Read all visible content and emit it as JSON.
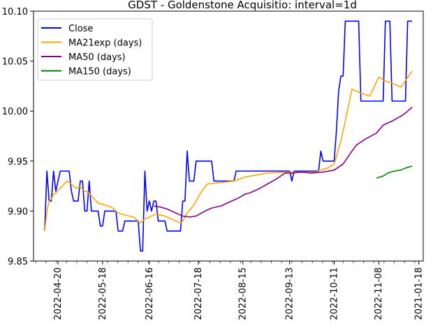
{
  "chart_data": {
    "type": "line",
    "title": "GDST - Goldenstone Acquisitio: interval=1d",
    "xlabel": "",
    "ylabel": "",
    "ylim": [
      9.85,
      10.1
    ],
    "y_ticks": [
      "9.85",
      "9.90",
      "9.95",
      "10.00",
      "10.05",
      "10.10"
    ],
    "x_tick_labels": [
      "2022-04-20",
      "2022-05-18",
      "2022-06-16",
      "2022-07-18",
      "2022-08-15",
      "2022-09-13",
      "2022-10-11",
      "2022-11-08",
      "2021-01-18"
    ],
    "legend_position": "upper-left",
    "grid": false,
    "series": [
      {
        "name": "Close",
        "color": "#0000ff",
        "values": [
          [
            0,
            9.88
          ],
          [
            1,
            9.94
          ],
          [
            2,
            9.91
          ],
          [
            3,
            9.91
          ],
          [
            4,
            9.94
          ],
          [
            5,
            9.92
          ],
          [
            6,
            9.93
          ],
          [
            7,
            9.94
          ],
          [
            11,
            9.94
          ],
          [
            12,
            9.92
          ],
          [
            13,
            9.91
          ],
          [
            15,
            9.91
          ],
          [
            16,
            9.93
          ],
          [
            17,
            9.93
          ],
          [
            18,
            9.9
          ],
          [
            19,
            9.9
          ],
          [
            20,
            9.93
          ],
          [
            21,
            9.9
          ],
          [
            24,
            9.9
          ],
          [
            25,
            9.885
          ],
          [
            26,
            9.885
          ],
          [
            27,
            9.9
          ],
          [
            32,
            9.9
          ],
          [
            33,
            9.88
          ],
          [
            35,
            9.88
          ],
          [
            36,
            9.89
          ],
          [
            42,
            9.89
          ],
          [
            43,
            9.86
          ],
          [
            44,
            9.86
          ],
          [
            45,
            9.94
          ],
          [
            46,
            9.9
          ],
          [
            47,
            9.91
          ],
          [
            48,
            9.9
          ],
          [
            49,
            9.91
          ],
          [
            50,
            9.91
          ],
          [
            51,
            9.89
          ],
          [
            54,
            9.89
          ],
          [
            55,
            9.88
          ],
          [
            61,
            9.88
          ],
          [
            62,
            9.91
          ],
          [
            63,
            9.91
          ],
          [
            64,
            9.96
          ],
          [
            65,
            9.93
          ],
          [
            67,
            9.93
          ],
          [
            68,
            9.95
          ],
          [
            75,
            9.95
          ],
          [
            76,
            9.93
          ],
          [
            85,
            9.93
          ],
          [
            86,
            9.94
          ],
          [
            110,
            9.94
          ],
          [
            111,
            9.93
          ],
          [
            112,
            9.94
          ],
          [
            123,
            9.94
          ],
          [
            124,
            9.96
          ],
          [
            125,
            9.95
          ],
          [
            130,
            9.95
          ],
          [
            131,
            9.98
          ],
          [
            132,
            10.02
          ],
          [
            133,
            10.035
          ],
          [
            134,
            10.035
          ],
          [
            135,
            10.09
          ],
          [
            141,
            10.09
          ],
          [
            142,
            10.01
          ],
          [
            152,
            10.01
          ],
          [
            153,
            10.09
          ],
          [
            155,
            10.09
          ],
          [
            156,
            10.01
          ],
          [
            162,
            10.01
          ],
          [
            163,
            10.09
          ],
          [
            165,
            10.09
          ]
        ]
      },
      {
        "name": "MA21exp (days)",
        "color": "#ffa500",
        "values": [
          [
            0,
            9.88
          ],
          [
            1,
            9.9
          ],
          [
            2,
            9.91
          ],
          [
            3,
            9.912
          ],
          [
            4,
            9.917
          ],
          [
            5,
            9.918
          ],
          [
            6,
            9.921
          ],
          [
            8,
            9.925
          ],
          [
            10,
            9.93
          ],
          [
            12,
            9.927
          ],
          [
            14,
            9.923
          ],
          [
            16,
            9.924
          ],
          [
            18,
            9.92
          ],
          [
            20,
            9.918
          ],
          [
            22,
            9.913
          ],
          [
            24,
            9.908
          ],
          [
            27,
            9.906
          ],
          [
            30,
            9.904
          ],
          [
            33,
            9.898
          ],
          [
            36,
            9.896
          ],
          [
            40,
            9.894
          ],
          [
            43,
            9.888
          ],
          [
            45,
            9.892
          ],
          [
            48,
            9.895
          ],
          [
            50,
            9.897
          ],
          [
            54,
            9.895
          ],
          [
            57,
            9.892
          ],
          [
            61,
            9.888
          ],
          [
            62,
            9.89
          ],
          [
            64,
            9.898
          ],
          [
            67,
            9.906
          ],
          [
            70,
            9.918
          ],
          [
            73,
            9.927
          ],
          [
            77,
            9.928
          ],
          [
            85,
            9.93
          ],
          [
            90,
            9.934
          ],
          [
            100,
            9.938
          ],
          [
            110,
            9.939
          ],
          [
            122,
            9.939
          ],
          [
            124,
            9.941
          ],
          [
            127,
            9.943
          ],
          [
            130,
            9.947
          ],
          [
            133,
            9.97
          ],
          [
            135,
            9.99
          ],
          [
            138,
            10.022
          ],
          [
            142,
            10.018
          ],
          [
            146,
            10.015
          ],
          [
            150,
            10.034
          ],
          [
            153,
            10.03
          ],
          [
            156,
            10.028
          ],
          [
            160,
            10.024
          ],
          [
            165,
            10.04
          ]
        ]
      },
      {
        "name": "MA50 (days)",
        "color": "#800080",
        "values": [
          [
            49,
            9.905
          ],
          [
            52,
            9.904
          ],
          [
            55,
            9.902
          ],
          [
            58,
            9.899
          ],
          [
            62,
            9.895
          ],
          [
            65,
            9.894
          ],
          [
            68,
            9.895
          ],
          [
            72,
            9.9
          ],
          [
            75,
            9.903
          ],
          [
            79,
            9.905
          ],
          [
            83,
            9.909
          ],
          [
            87,
            9.913
          ],
          [
            90,
            9.917
          ],
          [
            92,
            9.918
          ],
          [
            96,
            9.922
          ],
          [
            100,
            9.927
          ],
          [
            104,
            9.932
          ],
          [
            108,
            9.938
          ],
          [
            111,
            9.938
          ],
          [
            115,
            9.939
          ],
          [
            120,
            9.938
          ],
          [
            125,
            9.939
          ],
          [
            130,
            9.941
          ],
          [
            134,
            9.947
          ],
          [
            138,
            9.96
          ],
          [
            140,
            9.966
          ],
          [
            144,
            9.972
          ],
          [
            149,
            9.978
          ],
          [
            152,
            9.986
          ],
          [
            156,
            9.99
          ],
          [
            160,
            9.995
          ],
          [
            162,
            9.998
          ],
          [
            165,
            10.004
          ]
        ]
      },
      {
        "name": "MA150 (days)",
        "color": "#008000",
        "values": [
          [
            149,
            9.933
          ],
          [
            152,
            9.935
          ],
          [
            154,
            9.938
          ],
          [
            157,
            9.94
          ],
          [
            160,
            9.941
          ],
          [
            162,
            9.943
          ],
          [
            165,
            9.945
          ]
        ]
      }
    ]
  }
}
